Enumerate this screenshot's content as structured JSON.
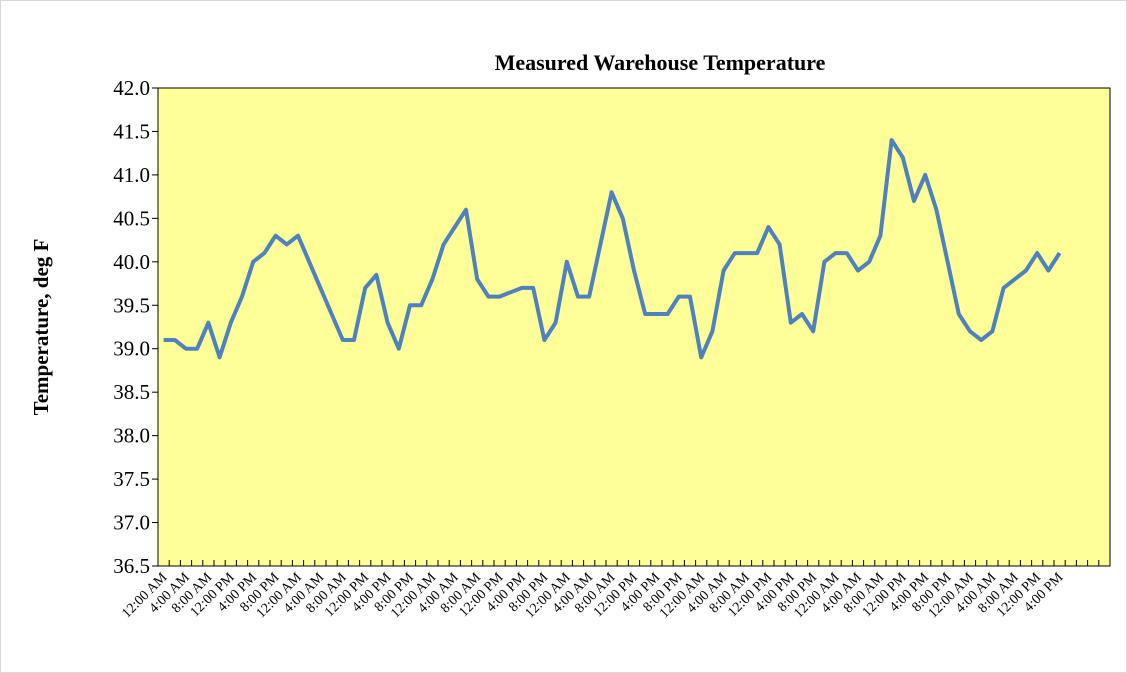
{
  "chart_data": {
    "type": "line",
    "title": "Measured Warehouse Temperature",
    "y_label": "Temperature, deg F",
    "categories": [
      "12:00 AM",
      null,
      "4:00 AM",
      null,
      "8:00 AM",
      null,
      "12:00 PM",
      null,
      "4:00 PM",
      null,
      "8:00 PM",
      null,
      "12:00 AM",
      null,
      "4:00 AM",
      null,
      "8:00 AM",
      null,
      "12:00 PM",
      null,
      "4:00 PM",
      null,
      "8:00 PM",
      null,
      "12:00 AM",
      null,
      "4:00 AM",
      null,
      "8:00 AM",
      null,
      "12:00 PM",
      null,
      "4:00 PM",
      null,
      "8:00 PM",
      null,
      "12:00 AM",
      null,
      "4:00 AM",
      null,
      "8:00 AM",
      null,
      "12:00 PM",
      null,
      "4:00 PM",
      null,
      "8:00 PM",
      null,
      "12:00 AM",
      null,
      "4:00 AM",
      null,
      "8:00 AM",
      null,
      "12:00 PM",
      null,
      "4:00 PM",
      null,
      "8:00 PM",
      null,
      "12:00 AM",
      null,
      "4:00 AM",
      null,
      "8:00 AM",
      null,
      "12:00 PM",
      null,
      "4:00 PM",
      null,
      "8:00 PM",
      null,
      "12:00 AM",
      null,
      "4:00 AM",
      null,
      "8:00 AM",
      null,
      "12:00 PM",
      null,
      "4:00 PM",
      null,
      null,
      null,
      null
    ],
    "series": [
      {
        "name": "Temperature",
        "color": "#4f81bd",
        "values": [
          39.1,
          39.1,
          39.0,
          39.0,
          39.3,
          38.9,
          39.3,
          39.6,
          40.0,
          40.1,
          40.3,
          40.2,
          40.3,
          40.0,
          39.7,
          39.4,
          39.1,
          39.1,
          39.7,
          39.85,
          39.3,
          39.0,
          39.5,
          39.5,
          39.8,
          40.2,
          40.4,
          40.6,
          39.8,
          39.6,
          39.6,
          39.65,
          39.7,
          39.7,
          39.1,
          39.3,
          40.0,
          39.6,
          39.6,
          40.2,
          40.8,
          40.5,
          39.9,
          39.4,
          39.4,
          39.4,
          39.6,
          39.6,
          38.9,
          39.2,
          39.9,
          40.1,
          40.1,
          40.1,
          40.4,
          40.2,
          39.3,
          39.4,
          39.2,
          40.0,
          40.1,
          40.1,
          39.9,
          40.0,
          40.3,
          41.4,
          41.2,
          40.7,
          41.0,
          40.6,
          40.0,
          39.4,
          39.2,
          39.1,
          39.2,
          39.7,
          39.8,
          39.9,
          40.1,
          39.9,
          40.1,
          null,
          null,
          null,
          null
        ]
      }
    ],
    "ylim": [
      36.5,
      42.0
    ],
    "yticks": [
      36.5,
      {
        "value": 37,
        "label": "37.0"
      },
      37.5,
      {
        "value": 38,
        "label": "38.0"
      },
      38.5,
      {
        "value": 39,
        "label": "39.0"
      },
      39.5,
      {
        "value": 40,
        "label": "40.0"
      },
      40.5,
      {
        "value": 41,
        "label": "41.0"
      },
      41.5,
      {
        "value": 42,
        "label": "42.0"
      }
    ],
    "background": "#ffff99"
  }
}
